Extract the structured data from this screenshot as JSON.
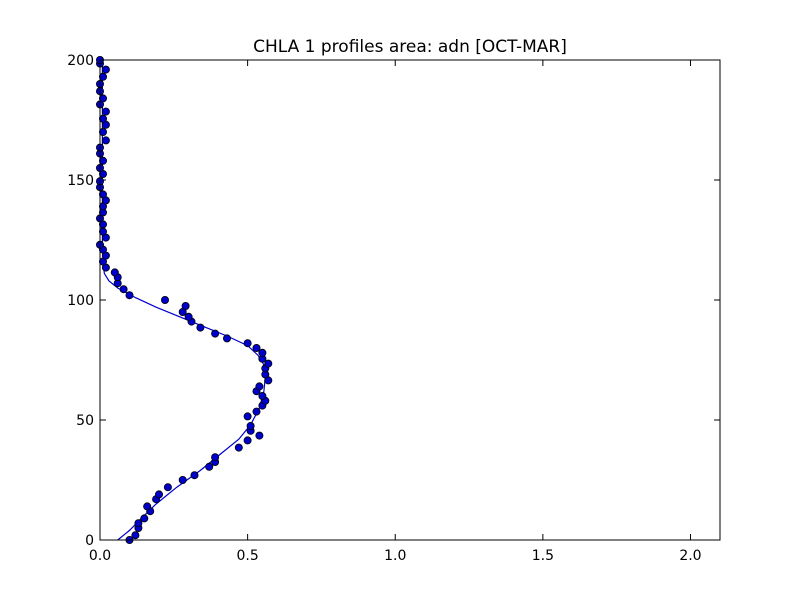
{
  "chart_data": {
    "type": "scatter",
    "title": "CHLA 1 profiles area: adn [OCT-MAR]",
    "xlabel": "",
    "ylabel": "",
    "xlim": [
      0,
      2.1
    ],
    "ylim": [
      0,
      200
    ],
    "xticks": [
      {
        "value": 0.0,
        "label": "0.0"
      },
      {
        "value": 0.5,
        "label": "0.5"
      },
      {
        "value": 1.0,
        "label": "1.0"
      },
      {
        "value": 1.5,
        "label": "1.5"
      },
      {
        "value": 2.0,
        "label": "2.0"
      }
    ],
    "yticks": [
      {
        "value": 0,
        "label": "0"
      },
      {
        "value": 50,
        "label": "50"
      },
      {
        "value": 100,
        "label": "100"
      },
      {
        "value": 150,
        "label": "150"
      },
      {
        "value": 200,
        "label": "200"
      }
    ],
    "grid": false,
    "legend": "none",
    "colors": {
      "points_fill": "#0000cc",
      "points_edge": "#000000",
      "fit_line": "#0000cc"
    },
    "series": [
      {
        "kind": "points",
        "points": [
          [
            0.1,
            0.0
          ],
          [
            0.12,
            2.0
          ],
          [
            0.13,
            5.0
          ],
          [
            0.13,
            7.0
          ],
          [
            0.15,
            9.0
          ],
          [
            0.17,
            12.0
          ],
          [
            0.16,
            14.0
          ],
          [
            0.19,
            17.0
          ],
          [
            0.2,
            19.0
          ],
          [
            0.23,
            22.0
          ],
          [
            0.28,
            25.0
          ],
          [
            0.32,
            27.0
          ],
          [
            0.37,
            30.5
          ],
          [
            0.39,
            32.5
          ],
          [
            0.39,
            34.5
          ],
          [
            0.47,
            38.5
          ],
          [
            0.5,
            41.5
          ],
          [
            0.54,
            43.5
          ],
          [
            0.51,
            45.5
          ],
          [
            0.51,
            47.5
          ],
          [
            0.5,
            51.5
          ],
          [
            0.53,
            53.5
          ],
          [
            0.55,
            56.0
          ],
          [
            0.56,
            58.0
          ],
          [
            0.55,
            60.0
          ],
          [
            0.53,
            62.0
          ],
          [
            0.54,
            64.0
          ],
          [
            0.57,
            66.5
          ],
          [
            0.56,
            69.0
          ],
          [
            0.56,
            71.5
          ],
          [
            0.57,
            73.5
          ],
          [
            0.55,
            75.5
          ],
          [
            0.55,
            78.0
          ],
          [
            0.53,
            80.0
          ],
          [
            0.5,
            82.0
          ],
          [
            0.43,
            84.0
          ],
          [
            0.39,
            86.0
          ],
          [
            0.34,
            88.5
          ],
          [
            0.31,
            91.0
          ],
          [
            0.3,
            93.0
          ],
          [
            0.28,
            95.0
          ],
          [
            0.29,
            97.5
          ],
          [
            0.22,
            100.0
          ],
          [
            0.1,
            102.0
          ],
          [
            0.08,
            104.5
          ],
          [
            0.06,
            107.0
          ],
          [
            0.06,
            109.5
          ],
          [
            0.05,
            111.5
          ],
          [
            0.02,
            113.5
          ],
          [
            0.01,
            116.0
          ],
          [
            0.02,
            118.5
          ],
          [
            0.01,
            121.0
          ],
          [
            0.0,
            123.0
          ],
          [
            0.02,
            126.0
          ],
          [
            0.01,
            128.5
          ],
          [
            0.01,
            131.5
          ],
          [
            0.0,
            134.0
          ],
          [
            0.01,
            136.5
          ],
          [
            0.01,
            139.0
          ],
          [
            0.02,
            141.5
          ],
          [
            0.01,
            144.0
          ],
          [
            0.0,
            147.0
          ],
          [
            0.0,
            149.5
          ],
          [
            0.01,
            152.5
          ],
          [
            0.0,
            155.0
          ],
          [
            0.01,
            158.0
          ],
          [
            0.0,
            161.0
          ],
          [
            0.0,
            163.5
          ],
          [
            0.02,
            166.5
          ],
          [
            0.01,
            170.0
          ],
          [
            0.02,
            173.0
          ],
          [
            0.01,
            175.5
          ],
          [
            0.02,
            178.5
          ],
          [
            0.0,
            181.5
          ],
          [
            0.01,
            184.0
          ],
          [
            0.0,
            187.0
          ],
          [
            0.0,
            190.0
          ],
          [
            0.01,
            193.0
          ],
          [
            0.02,
            196.0
          ],
          [
            0.0,
            198.5
          ],
          [
            0.0,
            200.0
          ]
        ]
      },
      {
        "kind": "fit_line",
        "points": [
          [
            0.06,
            0.0
          ],
          [
            0.1,
            4.0
          ],
          [
            0.14,
            9.0
          ],
          [
            0.19,
            15.0
          ],
          [
            0.26,
            22.0
          ],
          [
            0.34,
            29.0
          ],
          [
            0.41,
            36.0
          ],
          [
            0.47,
            42.0
          ],
          [
            0.51,
            48.0
          ],
          [
            0.54,
            55.0
          ],
          [
            0.555,
            62.0
          ],
          [
            0.56,
            68.0
          ],
          [
            0.555,
            73.0
          ],
          [
            0.535,
            77.0
          ],
          [
            0.5,
            81.0
          ],
          [
            0.43,
            85.0
          ],
          [
            0.35,
            89.0
          ],
          [
            0.27,
            93.0
          ],
          [
            0.19,
            97.0
          ],
          [
            0.12,
            101.0
          ],
          [
            0.06,
            105.0
          ],
          [
            0.03,
            108.0
          ],
          [
            0.015,
            111.0
          ],
          [
            0.01,
            115.0
          ],
          [
            0.008,
            125.0
          ],
          [
            0.008,
            150.0
          ],
          [
            0.008,
            175.0
          ],
          [
            0.008,
            200.0
          ]
        ]
      }
    ]
  }
}
